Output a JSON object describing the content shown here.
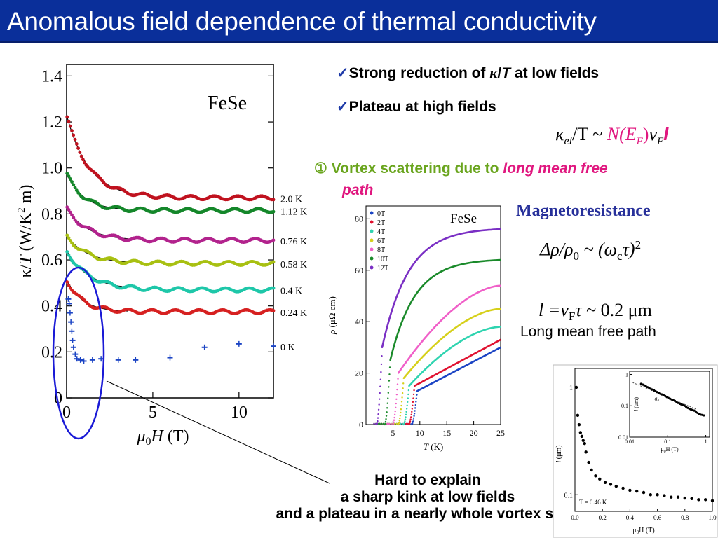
{
  "slide": {
    "title": "Anomalous field dependence of thermal conductivity",
    "bullets": [
      {
        "check": "✓",
        "pre": "Strong reduction of ",
        "kappa": "κ",
        "slash": "/",
        "T": "T",
        "post": " at low fields"
      },
      {
        "check": "✓",
        "text": "Plateau at high fields"
      }
    ],
    "formula_kappa": {
      "k": "κ",
      "sub": "el",
      "mid": "/T ~ ",
      "N": "N(E",
      "NF": "F",
      "Nclose": ")",
      "v": "v",
      "vF": "F",
      "l": "l"
    },
    "vortex_line1_num": "①",
    "vortex_line1_text": " Vortex scattering due to ",
    "vortex_line1_magenta": "long mean free",
    "vortex_line2_magenta": "path",
    "magnetoresistance_title": "Magnetoresistance",
    "mr_formula": {
      "d": "Δρ/ρ",
      "zero": "0",
      "mid": " ~ (ω",
      "c": "c",
      "tau": "τ)",
      "sq": "2"
    },
    "l_formula": {
      "l": "l",
      "eq": " =v",
      "F": "F",
      "tau": "τ",
      "val": " ~ 0.2 μm"
    },
    "long_mean_free_path": "Long mean free path",
    "bottom_text": [
      "Hard to explain",
      "a sharp kink at low fields",
      "and a plateau in a nearly whole vortex state"
    ]
  },
  "chart_data": [
    {
      "type": "scatter",
      "title": "",
      "annotation": "FeSe",
      "xlabel_parts": [
        "μ",
        "0",
        "H",
        " (T)"
      ],
      "ylabel_parts": [
        "κ/",
        "T",
        " (W/K",
        "2",
        " m)"
      ],
      "xlim": [
        0,
        12
      ],
      "ylim": [
        0,
        1.45
      ],
      "xticks": [
        0,
        5,
        10
      ],
      "yticks": [
        0,
        0.2,
        0.4,
        0.6,
        0.8,
        1.0,
        1.2,
        1.4
      ],
      "ytick_labels": [
        "0",
        "0.2",
        "0.4",
        "0.6",
        "0.8",
        "1.0",
        "1.2",
        "1.4"
      ],
      "series": [
        {
          "name": "2.0 K",
          "color": "#c0121f",
          "a": 0.87,
          "b": 0.36,
          "c": 1.3
        },
        {
          "name": "1.12 K",
          "color": "#14872a",
          "a": 0.815,
          "b": 0.16,
          "c": 1.0
        },
        {
          "name": "0.76 K",
          "color": "#b2238d",
          "a": 0.685,
          "b": 0.14,
          "c": 1.2
        },
        {
          "name": "0.58 K",
          "color": "#a8c012",
          "a": 0.585,
          "b": 0.12,
          "c": 1.2
        },
        {
          "name": "0.4 K",
          "color": "#1ec7a9",
          "a": 0.47,
          "b": 0.17,
          "c": 1.3
        },
        {
          "name": "0.24 K",
          "color": "#d62020",
          "a": 0.375,
          "b": 0.14,
          "c": 0.9
        },
        {
          "name": "0 K",
          "color": "#1b44c4",
          "points": [
            [
              0.1,
              0.43
            ],
            [
              0.15,
              0.41
            ],
            [
              0.2,
              0.37
            ],
            [
              0.25,
              0.33
            ],
            [
              0.3,
              0.29
            ],
            [
              0.35,
              0.25
            ],
            [
              0.4,
              0.22
            ],
            [
              0.5,
              0.19
            ],
            [
              0.6,
              0.17
            ],
            [
              0.8,
              0.165
            ],
            [
              1.0,
              0.16
            ],
            [
              1.5,
              0.165
            ],
            [
              2.0,
              0.17
            ],
            [
              3.0,
              0.165
            ],
            [
              4.0,
              0.165
            ],
            [
              6.0,
              0.175
            ],
            [
              8.0,
              0.22
            ],
            [
              10.0,
              0.235
            ],
            [
              12.0,
              0.225
            ]
          ]
        }
      ],
      "legend_placement": "right"
    },
    {
      "type": "line",
      "title": "",
      "annotation": "FeSe",
      "xlabel_parts": [
        "T",
        " (K)"
      ],
      "ylabel_parts": [
        "ρ",
        " (μΩ cm)"
      ],
      "xlim": [
        0,
        25
      ],
      "ylim": [
        0,
        85
      ],
      "xticks": [
        5,
        10,
        15,
        20,
        25
      ],
      "yticks": [
        0,
        20,
        40,
        60,
        80
      ],
      "series": [
        {
          "name": "0T",
          "color": "#1b44c4",
          "Tc": 9.5,
          "rho_at_tc": 13,
          "rho_at_25": 30,
          "kind": "linear"
        },
        {
          "name": "2T",
          "color": "#e0112f",
          "Tc": 9.0,
          "rho_at_tc": 15,
          "rho_at_25": 33,
          "kind": "linear"
        },
        {
          "name": "4T",
          "color": "#2fd4b0",
          "Tc": 8.0,
          "rho_at_tc": 15,
          "rho_at_25": 38,
          "kind": "concave"
        },
        {
          "name": "6T",
          "color": "#d6d01a",
          "Tc": 7.0,
          "rho_at_tc": 18,
          "rho_at_25": 45,
          "kind": "concave"
        },
        {
          "name": "8T",
          "color": "#f05fc8",
          "Tc": 6.0,
          "rho_at_tc": 20,
          "rho_at_25": 54,
          "kind": "concave"
        },
        {
          "name": "10T",
          "color": "#1a8a2a",
          "Tc": 4.5,
          "rho_at_tc": 25,
          "rho_at_25": 64,
          "kind": "saturating"
        },
        {
          "name": "12T",
          "color": "#7a2fc4",
          "Tc": 3.0,
          "rho_at_tc": 30,
          "rho_at_25": 76,
          "kind": "saturating"
        }
      ],
      "legend_placement": "top-left"
    },
    {
      "type": "scatter",
      "title": "",
      "annotation": "T = 0.46 K",
      "xlabel_parts": [
        "μ",
        "0",
        "H",
        " (T)"
      ],
      "ylabel_parts": [
        "l",
        " (μm)"
      ],
      "xlim": [
        0,
        1.0
      ],
      "ylim_log": [
        0.07,
        1.5
      ],
      "xticks": [
        0,
        0.2,
        0.4,
        0.6,
        0.8,
        1.0
      ],
      "xtick_labels": [
        "0.0",
        "0.2",
        "0.4",
        "0.6",
        "0.8",
        "1.0"
      ],
      "yticks": [
        0.1,
        1
      ],
      "ytick_labels": [
        "0.1",
        "1"
      ],
      "points": [
        [
          0.01,
          1.0
        ],
        [
          0.02,
          0.55
        ],
        [
          0.03,
          0.45
        ],
        [
          0.04,
          0.38
        ],
        [
          0.05,
          0.35
        ],
        [
          0.06,
          0.32
        ],
        [
          0.07,
          0.3
        ],
        [
          0.08,
          0.25
        ],
        [
          0.1,
          0.2
        ],
        [
          0.12,
          0.17
        ],
        [
          0.15,
          0.15
        ],
        [
          0.18,
          0.14
        ],
        [
          0.22,
          0.13
        ],
        [
          0.26,
          0.125
        ],
        [
          0.3,
          0.12
        ],
        [
          0.35,
          0.115
        ],
        [
          0.4,
          0.11
        ],
        [
          0.45,
          0.108
        ],
        [
          0.5,
          0.105
        ],
        [
          0.55,
          0.1
        ],
        [
          0.6,
          0.1
        ],
        [
          0.65,
          0.098
        ],
        [
          0.7,
          0.095
        ],
        [
          0.75,
          0.095
        ],
        [
          0.8,
          0.093
        ],
        [
          0.85,
          0.092
        ],
        [
          0.9,
          0.09
        ],
        [
          0.95,
          0.09
        ],
        [
          1.0,
          0.088
        ]
      ],
      "inset": {
        "xlabel_parts": [
          "μ",
          "0",
          "H",
          "  (T)"
        ],
        "ylabel_parts": [
          "l",
          " (μm)"
        ],
        "xticks": [
          0.01,
          0.1,
          1
        ],
        "xtick_labels": [
          "0.01",
          "0.1",
          "1"
        ],
        "yticks": [
          0.01,
          0.1,
          1
        ],
        "ytick_labels": [
          "0.01",
          "0.1",
          "1"
        ],
        "annotation": "a₀",
        "scale": "log-log"
      }
    }
  ]
}
